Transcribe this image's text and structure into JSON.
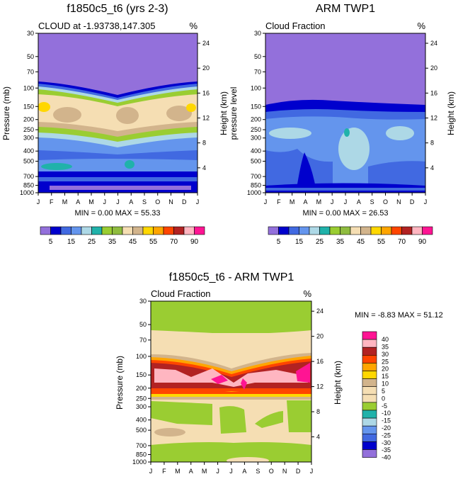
{
  "chart_data": [
    {
      "type": "heatmap",
      "title": "f1850c5_t6 (yrs 2-3)",
      "subtitle_left": "CLOUD at -1.93738,147.305",
      "subtitle_right": "%",
      "ylabel": "Pressure (mb)",
      "ylabel_right": "Height (km)",
      "x_ticks": [
        "J",
        "F",
        "M",
        "A",
        "M",
        "J",
        "J",
        "A",
        "S",
        "O",
        "N",
        "D",
        "J"
      ],
      "y_ticks": [
        "30",
        "50",
        "70",
        "100",
        "150",
        "200",
        "250",
        "300",
        "400",
        "500",
        "700",
        "850",
        "1000"
      ],
      "y_ticks_right": [
        "24",
        "20",
        "16",
        "12",
        "8",
        "4"
      ],
      "stats": "MIN =  0.00 MAX =  55.33",
      "colorbar_labels": [
        "5",
        "15",
        "25",
        "35",
        "45",
        "55",
        "70",
        "90"
      ],
      "colorbar_colors": [
        "#9370db",
        "#0000cd",
        "#4169e1",
        "#6495ed",
        "#add8e6",
        "#20b2aa",
        "#9acd32",
        "#8fbc3f",
        "#f5deb3",
        "#d2b48c",
        "#ffd700",
        "#ffa500",
        "#ff4500",
        "#b22222",
        "#ffb6c1",
        "#ff1493"
      ]
    },
    {
      "type": "heatmap",
      "title": "ARM TWP1",
      "subtitle_left": "Cloud Fraction",
      "subtitle_right": "%",
      "ylabel": "pressure level",
      "ylabel_right": "Height (km)",
      "x_ticks": [
        "J",
        "F",
        "M",
        "A",
        "M",
        "J",
        "J",
        "A",
        "S",
        "O",
        "N",
        "D",
        "J"
      ],
      "y_ticks": [
        "30",
        "50",
        "70",
        "100",
        "150",
        "200",
        "250",
        "300",
        "400",
        "500",
        "700",
        "850",
        "1000"
      ],
      "y_ticks_right": [
        "24",
        "20",
        "16",
        "12",
        "8",
        "4"
      ],
      "stats": "MIN =  0.00 MAX =  26.53",
      "colorbar_labels": [
        "5",
        "15",
        "25",
        "35",
        "45",
        "55",
        "70",
        "90"
      ],
      "colorbar_colors": [
        "#9370db",
        "#0000cd",
        "#4169e1",
        "#6495ed",
        "#add8e6",
        "#20b2aa",
        "#9acd32",
        "#8fbc3f",
        "#f5deb3",
        "#d2b48c",
        "#ffd700",
        "#ffa500",
        "#ff4500",
        "#b22222",
        "#ffb6c1",
        "#ff1493"
      ]
    },
    {
      "type": "heatmap",
      "title": "f1850c5_t6 - ARM TWP1",
      "subtitle_left": "Cloud Fraction",
      "subtitle_right": "%",
      "ylabel": "Pressure (mb)",
      "ylabel_right": "Height (km)",
      "x_ticks": [
        "J",
        "F",
        "M",
        "A",
        "M",
        "J",
        "J",
        "A",
        "S",
        "O",
        "N",
        "D",
        "J"
      ],
      "y_ticks": [
        "30",
        "50",
        "70",
        "100",
        "150",
        "200",
        "250",
        "300",
        "400",
        "500",
        "700",
        "850",
        "1000"
      ],
      "y_ticks_right": [
        "24",
        "20",
        "16",
        "12",
        "8",
        "4"
      ],
      "stats": "MIN =  -8.83 MAX =  51.12",
      "colorbar_labels": [
        "40",
        "35",
        "30",
        "25",
        "20",
        "15",
        "10",
        "5",
        "0",
        "-5",
        "-10",
        "-15",
        "-20",
        "-25",
        "-30",
        "-35",
        "-40"
      ],
      "colorbar_colors": [
        "#ff1493",
        "#ffb6c1",
        "#b22222",
        "#ff4500",
        "#ffa500",
        "#ffd700",
        "#d2b48c",
        "#f5deb3",
        "#f5deb3",
        "#9acd32",
        "#20b2aa",
        "#add8e6",
        "#6495ed",
        "#4169e1",
        "#0000cd",
        "#9370db"
      ]
    }
  ]
}
